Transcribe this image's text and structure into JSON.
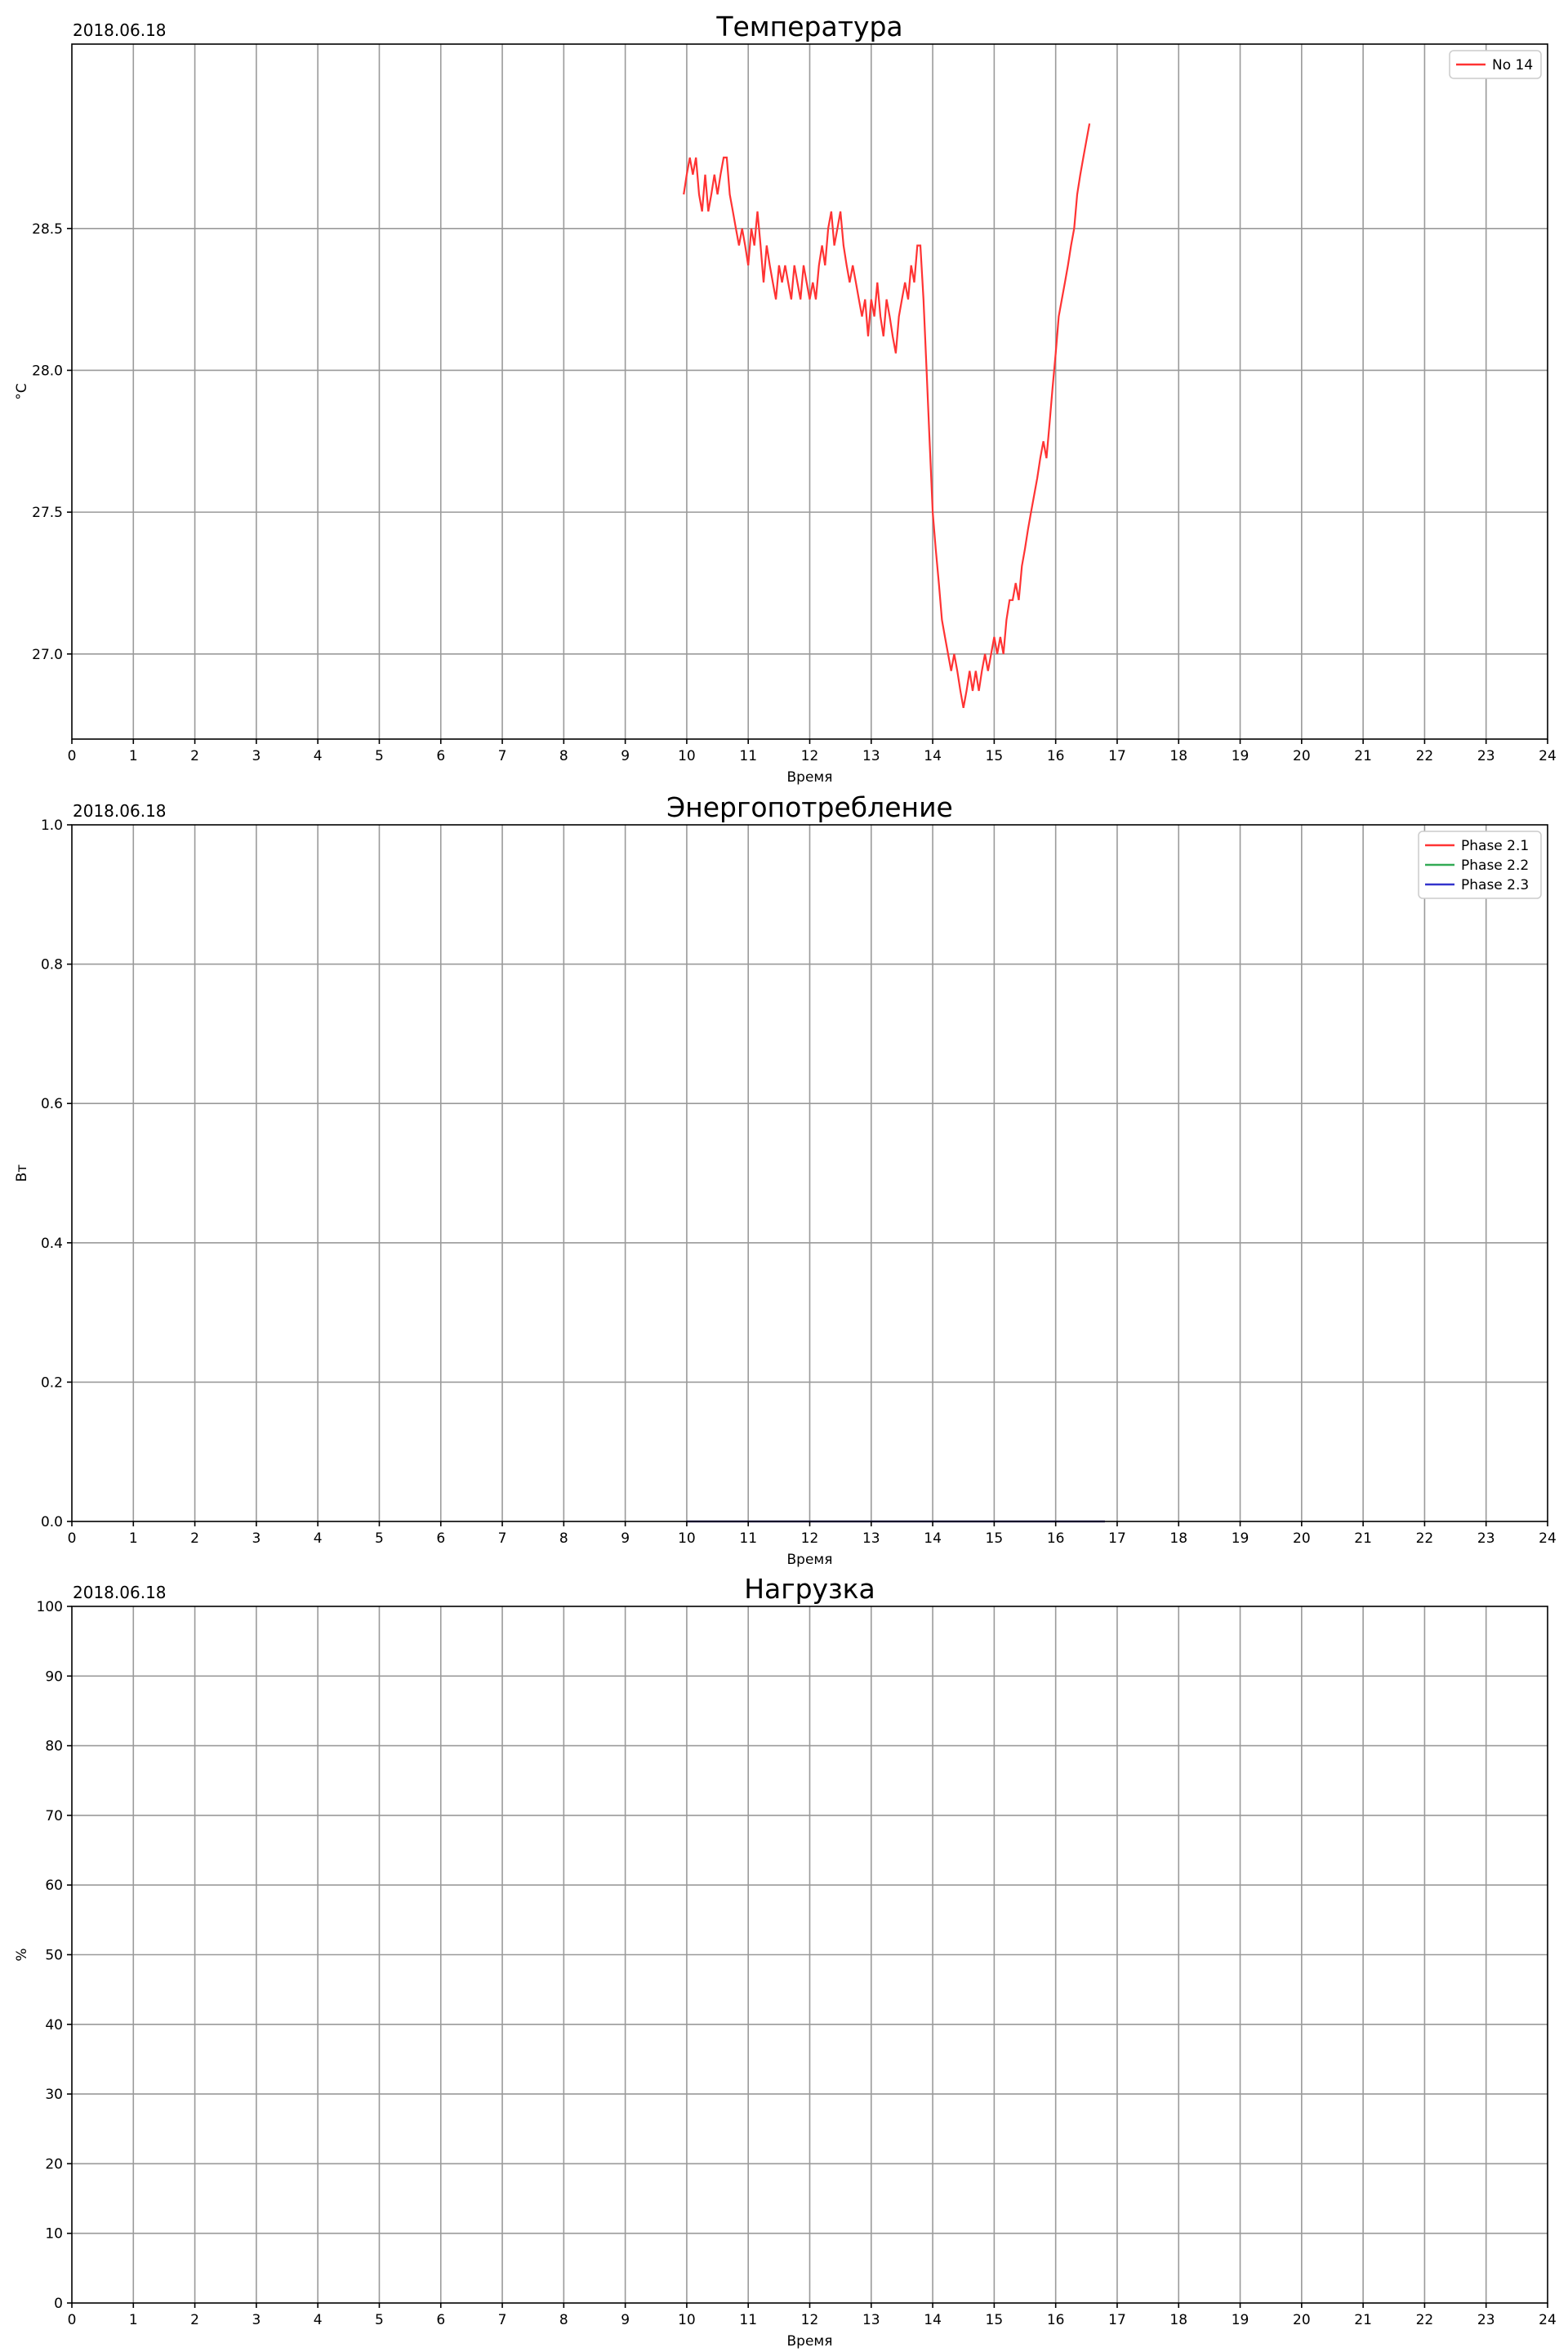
{
  "chart_data": [
    {
      "type": "line",
      "title": "Температура",
      "date_label": "2018.06.18",
      "xlabel": "Время",
      "ylabel": "°C",
      "xlim": [
        0,
        24
      ],
      "ylim": [
        26.7,
        29.15
      ],
      "xticks": [
        "0",
        "1",
        "2",
        "3",
        "4",
        "5",
        "6",
        "7",
        "8",
        "9",
        "10",
        "11",
        "12",
        "13",
        "14",
        "15",
        "16",
        "17",
        "18",
        "19",
        "20",
        "21",
        "22",
        "23",
        "24"
      ],
      "yticks": [
        "27.0",
        "27.5",
        "28.0",
        "28.5"
      ],
      "grid": true,
      "legend_position": "top-right",
      "series": [
        {
          "name": "No 14",
          "color": "#ff3333",
          "points": [
            [
              9.95,
              28.62
            ],
            [
              10.0,
              28.69
            ],
            [
              10.05,
              28.75
            ],
            [
              10.1,
              28.69
            ],
            [
              10.15,
              28.75
            ],
            [
              10.2,
              28.62
            ],
            [
              10.25,
              28.56
            ],
            [
              10.3,
              28.69
            ],
            [
              10.35,
              28.56
            ],
            [
              10.4,
              28.62
            ],
            [
              10.45,
              28.69
            ],
            [
              10.5,
              28.62
            ],
            [
              10.55,
              28.69
            ],
            [
              10.6,
              28.75
            ],
            [
              10.65,
              28.75
            ],
            [
              10.7,
              28.62
            ],
            [
              10.75,
              28.56
            ],
            [
              10.8,
              28.5
            ],
            [
              10.85,
              28.44
            ],
            [
              10.9,
              28.5
            ],
            [
              10.95,
              28.44
            ],
            [
              11.0,
              28.37
            ],
            [
              11.05,
              28.5
            ],
            [
              11.1,
              28.44
            ],
            [
              11.15,
              28.56
            ],
            [
              11.2,
              28.44
            ],
            [
              11.25,
              28.31
            ],
            [
              11.3,
              28.44
            ],
            [
              11.35,
              28.37
            ],
            [
              11.4,
              28.31
            ],
            [
              11.45,
              28.25
            ],
            [
              11.5,
              28.37
            ],
            [
              11.55,
              28.31
            ],
            [
              11.6,
              28.37
            ],
            [
              11.65,
              28.31
            ],
            [
              11.7,
              28.25
            ],
            [
              11.75,
              28.37
            ],
            [
              11.8,
              28.31
            ],
            [
              11.85,
              28.25
            ],
            [
              11.9,
              28.37
            ],
            [
              11.95,
              28.31
            ],
            [
              12.0,
              28.25
            ],
            [
              12.05,
              28.31
            ],
            [
              12.1,
              28.25
            ],
            [
              12.15,
              28.37
            ],
            [
              12.2,
              28.44
            ],
            [
              12.25,
              28.37
            ],
            [
              12.3,
              28.5
            ],
            [
              12.35,
              28.56
            ],
            [
              12.4,
              28.44
            ],
            [
              12.45,
              28.5
            ],
            [
              12.5,
              28.56
            ],
            [
              12.55,
              28.44
            ],
            [
              12.6,
              28.37
            ],
            [
              12.65,
              28.31
            ],
            [
              12.7,
              28.37
            ],
            [
              12.75,
              28.31
            ],
            [
              12.8,
              28.25
            ],
            [
              12.85,
              28.19
            ],
            [
              12.9,
              28.25
            ],
            [
              12.95,
              28.12
            ],
            [
              13.0,
              28.25
            ],
            [
              13.05,
              28.19
            ],
            [
              13.1,
              28.31
            ],
            [
              13.15,
              28.19
            ],
            [
              13.2,
              28.12
            ],
            [
              13.25,
              28.25
            ],
            [
              13.3,
              28.19
            ],
            [
              13.35,
              28.12
            ],
            [
              13.4,
              28.06
            ],
            [
              13.45,
              28.19
            ],
            [
              13.5,
              28.25
            ],
            [
              13.55,
              28.31
            ],
            [
              13.6,
              28.25
            ],
            [
              13.65,
              28.37
            ],
            [
              13.7,
              28.31
            ],
            [
              13.75,
              28.44
            ],
            [
              13.8,
              28.44
            ],
            [
              13.85,
              28.25
            ],
            [
              13.9,
              28.0
            ],
            [
              13.95,
              27.75
            ],
            [
              14.0,
              27.5
            ],
            [
              14.05,
              27.37
            ],
            [
              14.1,
              27.25
            ],
            [
              14.15,
              27.12
            ],
            [
              14.2,
              27.06
            ],
            [
              14.25,
              27.0
            ],
            [
              14.3,
              26.94
            ],
            [
              14.35,
              27.0
            ],
            [
              14.4,
              26.94
            ],
            [
              14.45,
              26.87
            ],
            [
              14.5,
              26.81
            ],
            [
              14.55,
              26.87
            ],
            [
              14.6,
              26.94
            ],
            [
              14.65,
              26.87
            ],
            [
              14.7,
              26.94
            ],
            [
              14.75,
              26.87
            ],
            [
              14.8,
              26.94
            ],
            [
              14.85,
              27.0
            ],
            [
              14.9,
              26.94
            ],
            [
              14.95,
              27.0
            ],
            [
              15.0,
              27.06
            ],
            [
              15.05,
              27.0
            ],
            [
              15.1,
              27.06
            ],
            [
              15.15,
              27.0
            ],
            [
              15.2,
              27.12
            ],
            [
              15.25,
              27.19
            ],
            [
              15.3,
              27.19
            ],
            [
              15.35,
              27.25
            ],
            [
              15.4,
              27.19
            ],
            [
              15.45,
              27.31
            ],
            [
              15.5,
              27.37
            ],
            [
              15.55,
              27.44
            ],
            [
              15.6,
              27.5
            ],
            [
              15.65,
              27.56
            ],
            [
              15.7,
              27.62
            ],
            [
              15.75,
              27.69
            ],
            [
              15.8,
              27.75
            ],
            [
              15.85,
              27.69
            ],
            [
              15.9,
              27.81
            ],
            [
              15.95,
              27.94
            ],
            [
              16.0,
              28.06
            ],
            [
              16.05,
              28.19
            ],
            [
              16.1,
              28.25
            ],
            [
              16.15,
              28.31
            ],
            [
              16.2,
              28.37
            ],
            [
              16.25,
              28.44
            ],
            [
              16.3,
              28.5
            ],
            [
              16.35,
              28.62
            ],
            [
              16.4,
              28.69
            ],
            [
              16.45,
              28.75
            ],
            [
              16.5,
              28.81
            ],
            [
              16.55,
              28.87
            ]
          ]
        }
      ]
    },
    {
      "type": "line",
      "title": "Энергопотребление",
      "date_label": "2018.06.18",
      "xlabel": "Время",
      "ylabel": "Вт",
      "xlim": [
        0,
        24
      ],
      "ylim": [
        0,
        1
      ],
      "xticks": [
        "0",
        "1",
        "2",
        "3",
        "4",
        "5",
        "6",
        "7",
        "8",
        "9",
        "10",
        "11",
        "12",
        "13",
        "14",
        "15",
        "16",
        "17",
        "18",
        "19",
        "20",
        "21",
        "22",
        "23",
        "24"
      ],
      "yticks": [
        "0.0",
        "0.2",
        "0.4",
        "0.6",
        "0.8",
        "1.0"
      ],
      "grid": true,
      "legend_position": "top-right",
      "series": [
        {
          "name": "Phase 2.1",
          "color": "#ff3333",
          "points": [
            [
              10.0,
              0
            ],
            [
              16.8,
              0
            ]
          ]
        },
        {
          "name": "Phase 2.2",
          "color": "#33aa55",
          "points": [
            [
              10.0,
              0
            ],
            [
              16.8,
              0
            ]
          ]
        },
        {
          "name": "Phase 2.3",
          "color": "#3333cc",
          "points": [
            [
              10.0,
              0
            ],
            [
              16.8,
              0
            ]
          ]
        }
      ]
    },
    {
      "type": "line",
      "title": "Нагрузка",
      "date_label": "2018.06.18",
      "xlabel": "Время",
      "ylabel": "%",
      "xlim": [
        0,
        24
      ],
      "ylim": [
        0,
        100
      ],
      "xticks": [
        "0",
        "1",
        "2",
        "3",
        "4",
        "5",
        "6",
        "7",
        "8",
        "9",
        "10",
        "11",
        "12",
        "13",
        "14",
        "15",
        "16",
        "17",
        "18",
        "19",
        "20",
        "21",
        "22",
        "23",
        "24"
      ],
      "yticks": [
        "0",
        "10",
        "20",
        "30",
        "40",
        "50",
        "60",
        "70",
        "80",
        "90",
        "100"
      ],
      "grid": true,
      "legend_position": "",
      "series": []
    }
  ]
}
